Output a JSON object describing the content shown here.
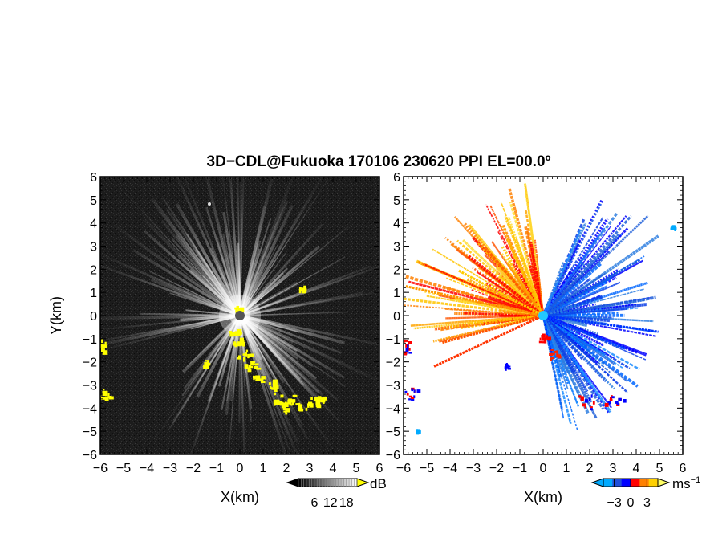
{
  "title": "3D−CDL@Fukuoka 170106 230620 PPI EL=00.0º",
  "chart_data": [
    {
      "type": "heatmap",
      "panel": "left",
      "quantity": "reflectivity",
      "xlabel": "X(km)",
      "ylabel": "Y(km)",
      "xlim": [
        -6,
        6
      ],
      "ylim": [
        -6,
        6
      ],
      "x_ticks": [
        "−6",
        "−5",
        "−4",
        "−3",
        "−2",
        "−1",
        "0",
        "1",
        "2",
        "3",
        "4",
        "5",
        "6"
      ],
      "y_ticks": [
        "−6",
        "−5",
        "−4",
        "−3",
        "−2",
        "−1",
        "0",
        "1",
        "2",
        "3",
        "4",
        "5",
        "6"
      ],
      "colorbar": {
        "unit": "dB",
        "ticks": [
          "6",
          "12",
          "18"
        ],
        "tick_values": [
          6,
          12,
          18
        ],
        "range": [
          0,
          22
        ],
        "colors": [
          "#000000",
          "#ffffff"
        ],
        "overflow_color": "#ffff00"
      },
      "background_color": "#1e1e1e",
      "echo_color": "#ffff00"
    },
    {
      "type": "heatmap",
      "panel": "right",
      "quantity": "radial velocity",
      "xlabel": "X(km)",
      "ylabel": "",
      "xlim": [
        -6,
        6
      ],
      "ylim": [
        -6,
        6
      ],
      "x_ticks": [
        "−6",
        "−5",
        "−4",
        "−3",
        "−2",
        "−1",
        "0",
        "1",
        "2",
        "3",
        "4",
        "5",
        "6"
      ],
      "y_ticks": [
        "−6",
        "−5",
        "−4",
        "−3",
        "−2",
        "−1",
        "0",
        "1",
        "2",
        "3",
        "4",
        "5",
        "6"
      ],
      "colorbar": {
        "unit": "ms",
        "unit_exp": "−1",
        "ticks": [
          "−3",
          "0",
          "3"
        ],
        "tick_values": [
          -3,
          0,
          3
        ],
        "range": [
          -5,
          5
        ],
        "colors": [
          "#00aaff",
          "#1f4fd9",
          "#0000ff",
          "#ff0000",
          "#ff8000",
          "#ffd000"
        ]
      }
    }
  ]
}
